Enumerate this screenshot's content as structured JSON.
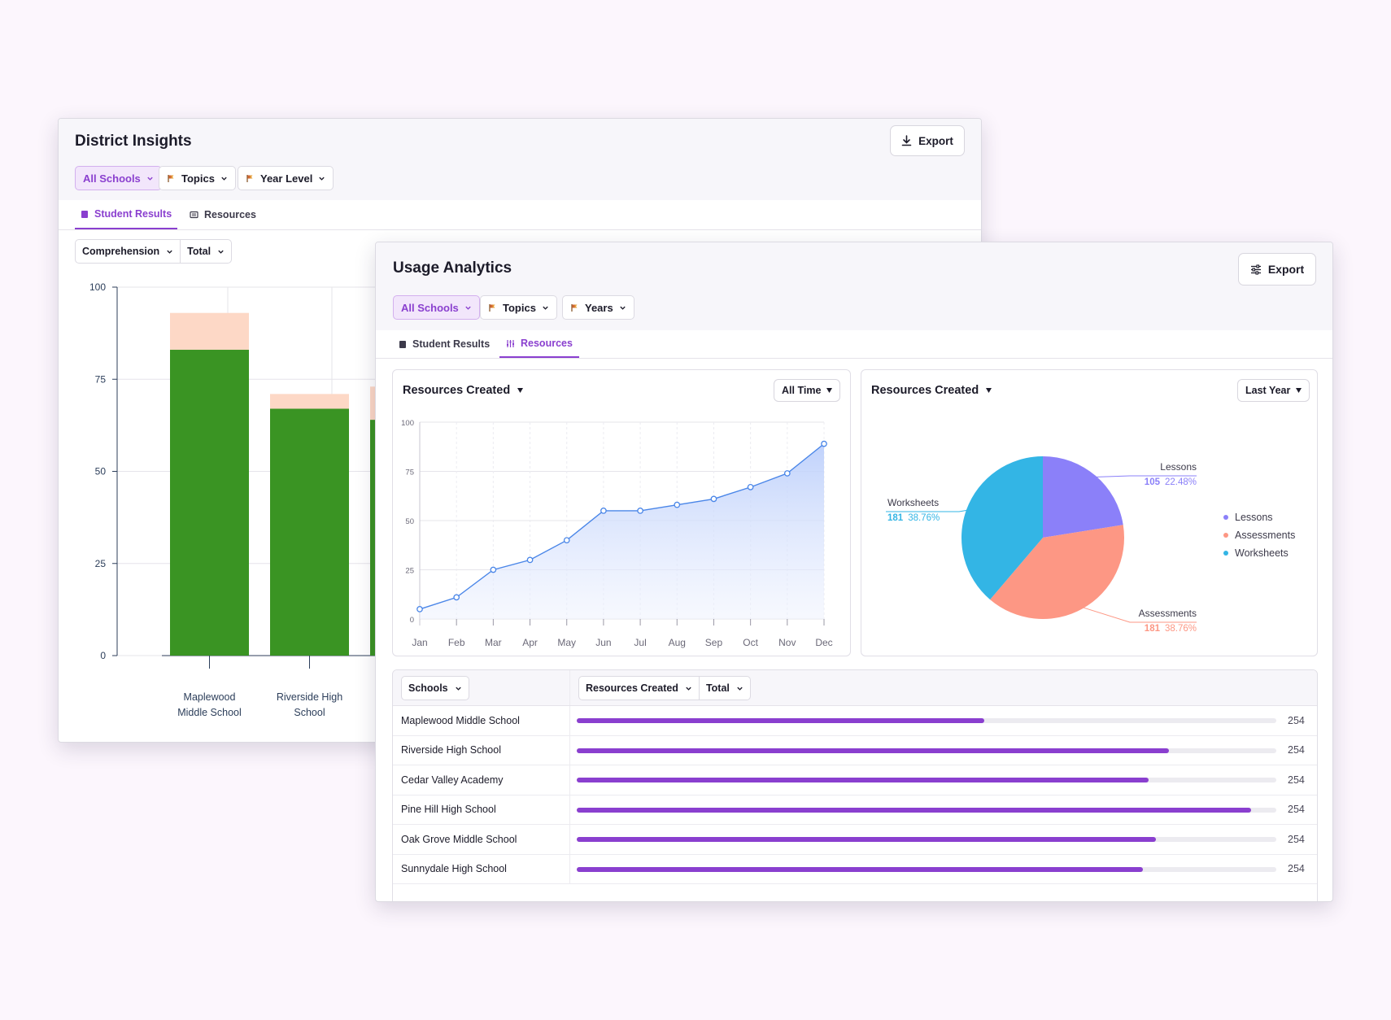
{
  "colors": {
    "accent": "#8a3fcf",
    "bar_green": "#3a9423",
    "bar_peach": "#fdd8c6",
    "line_blue": "#4a86e8",
    "pie_lessons": "#8b80f9",
    "pie_assessments": "#fd9784",
    "pie_worksheets": "#33b5e5"
  },
  "district": {
    "title": "District Insights",
    "export_label": "Export",
    "filters": {
      "schools": "All Schools",
      "topics": "Topics",
      "year_level": "Year Level"
    },
    "tabs": {
      "student_results": "Student Results",
      "resources": "Resources"
    },
    "metric": "Comprehension",
    "mode": "Total"
  },
  "usage": {
    "title": "Usage Analytics",
    "export_label": "Export",
    "filters": {
      "schools": "All Schools",
      "topics": "Topics",
      "years": "Years"
    },
    "tabs": {
      "student_results": "Student Results",
      "resources": "Resources"
    },
    "line_card": {
      "title": "Resources Created",
      "range": "All Time"
    },
    "pie_card": {
      "title": "Resources Created",
      "range": "Last Year"
    },
    "table": {
      "schools_header": "Schools",
      "metric_header": "Resources Created",
      "mode_header": "Total",
      "rows": [
        {
          "name": "Maplewood Middle School",
          "value": "254",
          "fill": 0.582
        },
        {
          "name": "Riverside High School",
          "value": "254",
          "fill": 0.847
        },
        {
          "name": "Cedar Valley Academy",
          "value": "254",
          "fill": 0.817
        },
        {
          "name": "Pine Hill High School",
          "value": "254",
          "fill": 0.964
        },
        {
          "name": "Oak Grove Middle School",
          "value": "254",
          "fill": 0.828
        },
        {
          "name": "Sunnydale High School",
          "value": "254",
          "fill": 0.809
        }
      ]
    }
  },
  "chart_data": [
    {
      "type": "bar",
      "stacked": true,
      "categories": [
        "Maplewood Middle School",
        "Riverside High School",
        "(partially hidden)"
      ],
      "series": [
        {
          "values": [
            83,
            67,
            64
          ]
        },
        {
          "values": [
            10,
            4,
            9
          ]
        }
      ],
      "ylim": [
        0,
        100
      ],
      "yticks": [
        0,
        25,
        50,
        75,
        100
      ],
      "grid": true
    },
    {
      "type": "area",
      "categories": [
        "Jan",
        "Feb",
        "Mar",
        "Apr",
        "May",
        "Jun",
        "Jul",
        "Aug",
        "Sep",
        "Oct",
        "Nov",
        "Dec"
      ],
      "values": [
        5,
        11,
        25,
        30,
        40,
        55,
        55,
        58,
        61,
        67,
        74,
        89
      ],
      "ylim": [
        0,
        100
      ],
      "yticks": [
        0,
        25,
        50,
        75,
        100
      ],
      "grid": true
    },
    {
      "type": "pie",
      "legend": "right",
      "slices": [
        {
          "label": "Lessons",
          "count": "105",
          "percent": "22.48%",
          "value": 22.48
        },
        {
          "label": "Assessments",
          "count": "181",
          "percent": "38.76%",
          "value": 38.76
        },
        {
          "label": "Worksheets",
          "count": "181",
          "percent": "38.76%",
          "value": 38.76
        }
      ]
    }
  ]
}
